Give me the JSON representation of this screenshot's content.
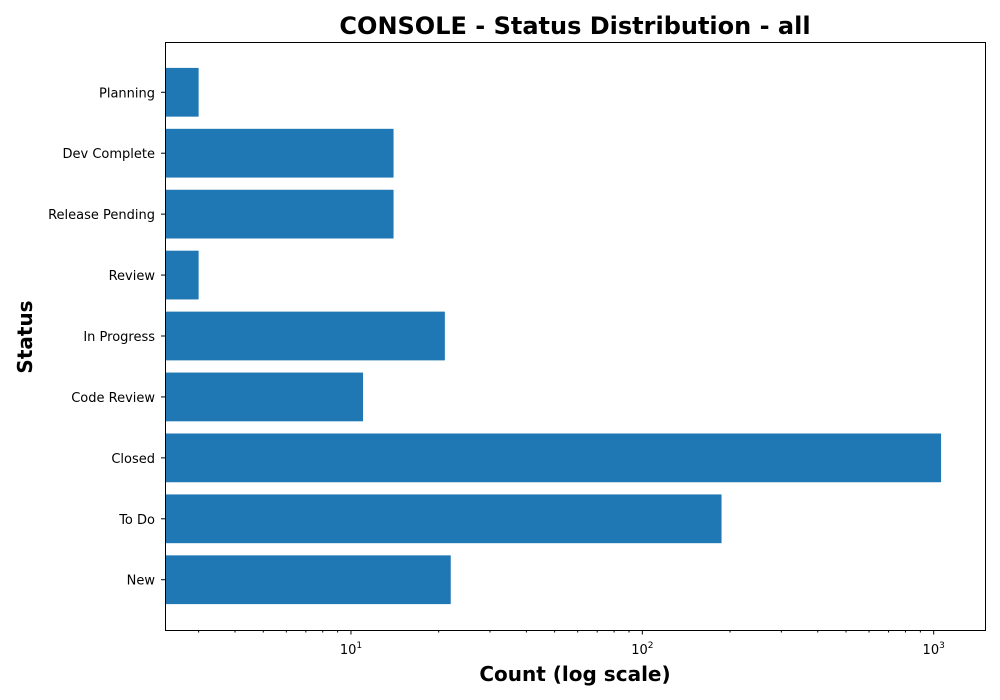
{
  "chart_data": {
    "type": "bar",
    "orientation": "horizontal",
    "title": "CONSOLE - Status Distribution - all",
    "xlabel": "Count (log scale)",
    "ylabel": "Status",
    "xscale": "log",
    "xlim": [
      2.3,
      1500
    ],
    "x_ticks": [
      {
        "value": 10,
        "base": "10",
        "exp": "1"
      },
      {
        "value": 100,
        "base": "10",
        "exp": "2"
      },
      {
        "value": 1000,
        "base": "10",
        "exp": "3"
      }
    ],
    "categories": [
      "New",
      "To Do",
      "Closed",
      "Code Review",
      "In Progress",
      "Review",
      "Release Pending",
      "Dev Complete",
      "Planning"
    ],
    "values": [
      22,
      187,
      1060,
      11,
      21,
      3,
      14,
      14,
      3
    ],
    "bar_color": "#1f77b4",
    "grid": false
  }
}
